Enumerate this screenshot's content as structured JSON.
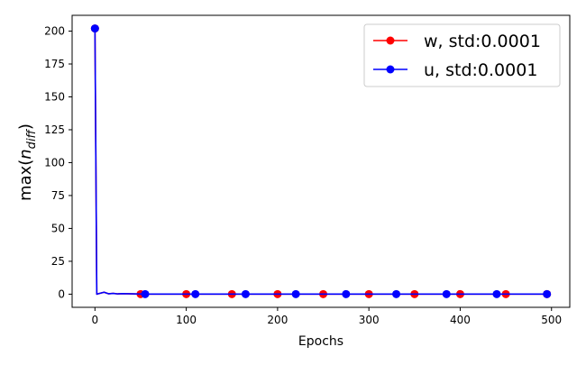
{
  "chart_data": {
    "type": "line",
    "title": "",
    "xlabel": "Epochs",
    "ylabel": "max(",
    "ylabel_var": "n",
    "ylabel_sub": "diff",
    "ylabel_close": ")",
    "xlim": [
      -25,
      520
    ],
    "ylim": [
      -10,
      212
    ],
    "xticks": [
      0,
      100,
      200,
      300,
      400,
      500
    ],
    "yticks": [
      0,
      25,
      50,
      75,
      100,
      125,
      150,
      175,
      200
    ],
    "grid": false,
    "legend": "top-right",
    "series": [
      {
        "name": "w, std:0.0001",
        "color": "#ff0000",
        "x": [
          0,
          2,
          10,
          15,
          20,
          25,
          30,
          50,
          100,
          150,
          200,
          250,
          300,
          350,
          400,
          450,
          495
        ],
        "y": [
          202,
          0,
          1.5,
          0.3,
          0.6,
          0.2,
          0.4,
          0.05,
          0.05,
          0.05,
          0.05,
          0.05,
          0.05,
          0.05,
          0.05,
          0.05,
          0.05
        ],
        "markers_x": [
          0,
          50,
          100,
          150,
          200,
          250,
          300,
          350,
          400,
          450,
          495
        ],
        "markers_y": [
          202,
          0.05,
          0.05,
          0.05,
          0.05,
          0.05,
          0.05,
          0.05,
          0.05,
          0.05,
          0.05
        ]
      },
      {
        "name": "u, std:0.0001",
        "color": "#0000ff",
        "x": [
          0,
          2,
          10,
          15,
          20,
          25,
          30,
          55,
          110,
          165,
          220,
          275,
          330,
          385,
          440,
          495
        ],
        "y": [
          202,
          0,
          1.5,
          0.3,
          0.6,
          0.2,
          0.4,
          0.05,
          0.05,
          0.05,
          0.05,
          0.05,
          0.05,
          0.05,
          0.05,
          0.05
        ],
        "markers_x": [
          0,
          55,
          110,
          165,
          220,
          275,
          330,
          385,
          440,
          495
        ],
        "markers_y": [
          202,
          0.05,
          0.05,
          0.05,
          0.05,
          0.05,
          0.05,
          0.05,
          0.05,
          0.05
        ]
      }
    ]
  }
}
